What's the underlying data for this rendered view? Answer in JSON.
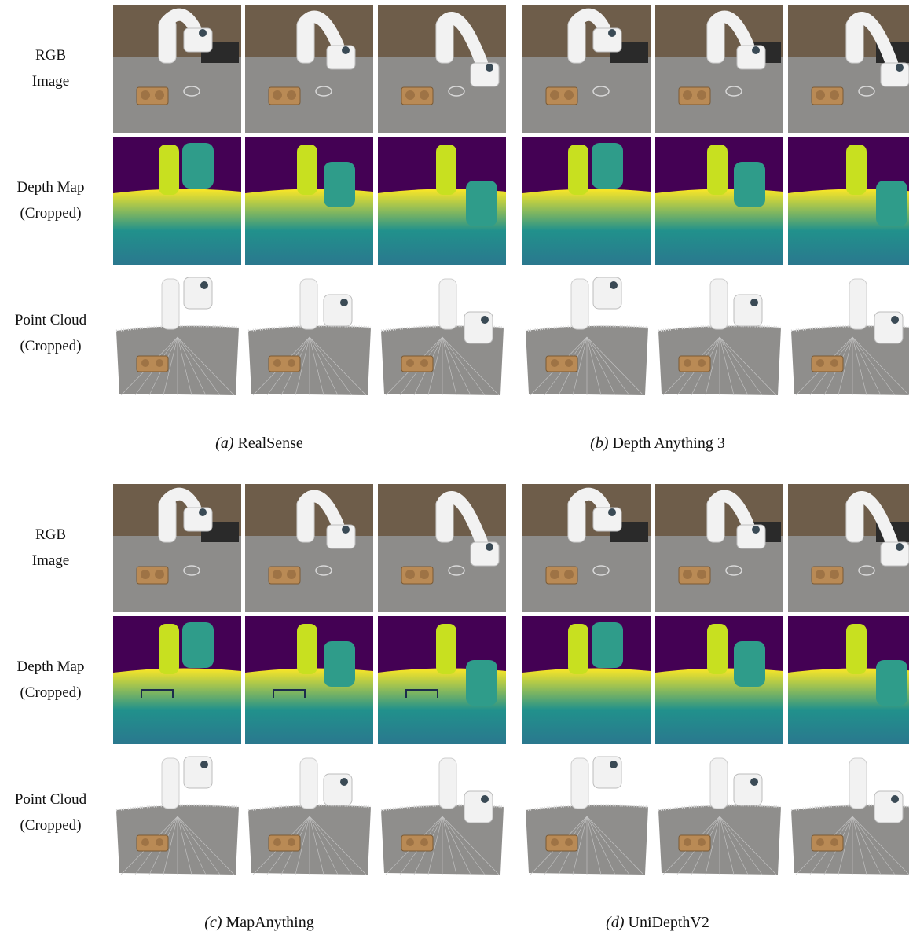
{
  "row_labels": {
    "rgb": [
      "RGB",
      "Image"
    ],
    "depth": [
      "Depth Map",
      "(Cropped)"
    ],
    "cloud": [
      "Point Cloud",
      "(Cropped)"
    ]
  },
  "panels": [
    {
      "tag": "(a)",
      "name": "RealSense"
    },
    {
      "tag": "(b)",
      "name": "Depth Anything 3"
    },
    {
      "tag": "(c)",
      "name": "MapAnything"
    },
    {
      "tag": "(d)",
      "name": "UniDepthV2"
    }
  ],
  "colors": {
    "floor": "#8d8c8a",
    "wall": "#6e5d4a",
    "robot": "#f2f2f2",
    "tray": "#b98a55",
    "depth_far": "#440154",
    "depth_near": "#fde725",
    "depth_mid": "#21918c",
    "depth_low": "#2a788e"
  }
}
